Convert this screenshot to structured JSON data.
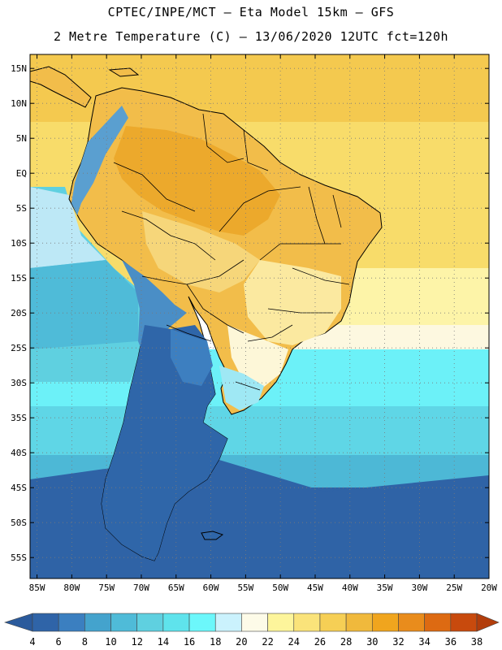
{
  "header": {
    "line1": "CPTEC/INPE/MCT –  Eta Model 15km – GFS",
    "line2": "2 Metre Temperature (C) – 13/06/2020 12UTC fct=120h"
  },
  "map": {
    "lat_labels": [
      "15N",
      "10N",
      "5N",
      "EQ",
      "5S",
      "10S",
      "15S",
      "20S",
      "25S",
      "30S",
      "35S",
      "40S",
      "45S",
      "50S",
      "55S"
    ],
    "lon_labels": [
      "85W",
      "80W",
      "75W",
      "70W",
      "65W",
      "60W",
      "55W",
      "50W",
      "45W",
      "40W",
      "35W",
      "30W",
      "25W",
      "20W"
    ],
    "lat_values": [
      15,
      10,
      5,
      0,
      -5,
      -10,
      -15,
      -20,
      -25,
      -30,
      -35,
      -40,
      -45,
      -50,
      -55
    ],
    "lon_values": [
      -85,
      -80,
      -75,
      -70,
      -65,
      -60,
      -55,
      -50,
      -45,
      -40,
      -35,
      -30,
      -25,
      -20
    ],
    "extent": {
      "west": -86,
      "east": -20,
      "north": 17,
      "south": -58
    }
  },
  "colorbar": {
    "labels": [
      "4",
      "6",
      "8",
      "10",
      "12",
      "14",
      "16",
      "18",
      "20",
      "22",
      "24",
      "26",
      "28",
      "30",
      "32",
      "34",
      "36",
      "38"
    ],
    "colors": [
      "#2f64a8",
      "#3b7fc0",
      "#44a3cd",
      "#4fbbd8",
      "#5fd0e0",
      "#5fe3ec",
      "#6cf7fb",
      "#cbf2fd",
      "#fdfbe8",
      "#fdf59b",
      "#fae37a",
      "#f6cf55",
      "#f0b93c",
      "#f0a51e",
      "#e98c1c",
      "#dd6a12",
      "#c84a0d"
    ],
    "low_color": "#2a5a9c",
    "high_color": "#b23d0b"
  },
  "colors": {
    "ocean_cold": "#2e62a5",
    "ocean_cool": "#4db8d6",
    "ocean_mid": "#65f1f8",
    "ocean_warm": "#fbf4a0",
    "ocean_hot": "#f4c94f",
    "land_hot": "#ecae33",
    "land_warm": "#f7d97a",
    "andes_cold": "#5a9fd0",
    "patagonia": "#2f66a9"
  }
}
